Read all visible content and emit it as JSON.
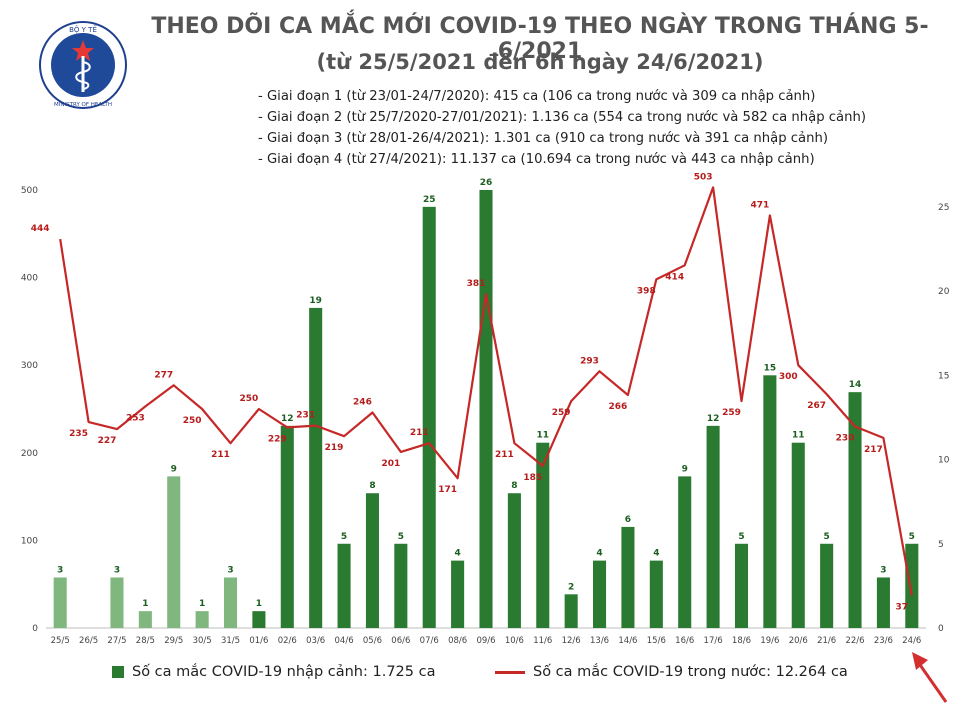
{
  "header": {
    "title": "THEO DÕI CA MẮC MỚI COVID-19 THEO NGÀY TRONG THÁNG 5-6/2021",
    "subtitle": "(từ 25/5/2021 đến 6h ngày 24/6/2021)",
    "logo_text": "BỘ Y TẾ · MINISTRY OF HEALTH",
    "phases": [
      "- Giai đoạn 1 (từ 23/01-24/7/2020): 415 ca (106 ca trong nước và 309 ca nhập cảnh)",
      "- Giai đoạn 2 (từ 25/7/2020-27/01/2021): 1.136 ca (554 ca trong nước và 582 ca nhập cảnh)",
      "- Giai đoạn 3 (từ 28/01-26/4/2021): 1.301 ca (910 ca trong nước và 391 ca nhập cảnh)",
      "- Giai đoạn 4 (từ 27/4/2021): 11.137 ca (10.694 ca trong nước và 443 ca nhập cảnh)"
    ]
  },
  "chart_data": {
    "type": "bar",
    "categories": [
      "25/5",
      "26/5",
      "27/5",
      "28/5",
      "29/5",
      "30/5",
      "31/5",
      "01/6",
      "02/6",
      "03/6",
      "04/6",
      "05/6",
      "06/6",
      "07/6",
      "08/6",
      "09/6",
      "10/6",
      "11/6",
      "12/6",
      "13/6",
      "14/6",
      "15/6",
      "16/6",
      "17/6",
      "18/6",
      "19/6",
      "20/6",
      "21/6",
      "22/6",
      "23/6",
      "24/6"
    ],
    "series": [
      {
        "name": "Số ca mắc COVID-19 nhập cảnh: 1.725 ca",
        "type": "bar",
        "axis": "right",
        "values": [
          3,
          0,
          3,
          1,
          9,
          1,
          3,
          1,
          12,
          19,
          5,
          8,
          5,
          25,
          4,
          26,
          8,
          11,
          2,
          4,
          6,
          4,
          9,
          12,
          5,
          15,
          11,
          5,
          14,
          3,
          5
        ]
      },
      {
        "name": "Số ca mắc COVID-19 trong nước: 12.264 ca",
        "type": "line",
        "axis": "left",
        "values": [
          444,
          235,
          227,
          253,
          277,
          250,
          211,
          250,
          229,
          231,
          219,
          246,
          201,
          211,
          171,
          381,
          211,
          185,
          259,
          293,
          266,
          398,
          414,
          503,
          259,
          471,
          300,
          267,
          230,
          217,
          37
        ]
      }
    ],
    "left_axis": {
      "ylim": [
        0,
        500
      ],
      "ticks": [
        0,
        100,
        200,
        300,
        400,
        500
      ]
    },
    "right_axis": {
      "ylim": [
        0,
        26
      ],
      "ticks": [
        0,
        5,
        10,
        15,
        20,
        25
      ]
    },
    "bar_colors": {
      "may": "#7fb77e",
      "june": "#2a7a31"
    },
    "line_color": "#c62828",
    "legend_position": "bottom"
  }
}
